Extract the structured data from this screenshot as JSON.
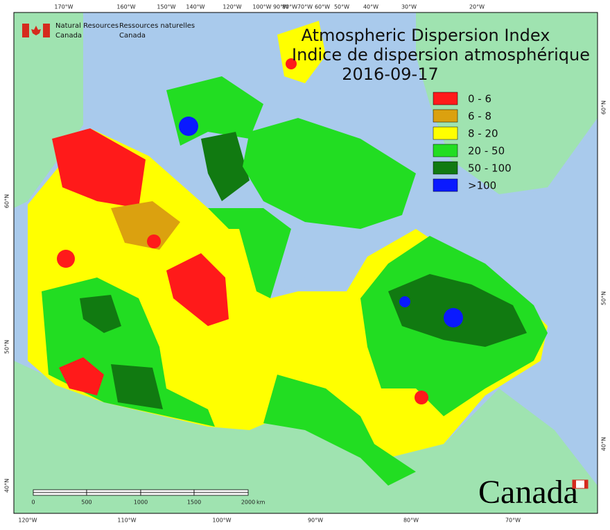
{
  "header": {
    "agency_en": [
      "Natural Resources",
      "Canada"
    ],
    "agency_fr": [
      "Ressources naturelles",
      "Canada"
    ]
  },
  "title": {
    "en": "Atmospheric Dispersion Index",
    "fr": "Indice de dispersion atmosphérique",
    "date": "2016-09-17"
  },
  "legend": [
    {
      "label": "0 - 6",
      "color": "#ff1a1a"
    },
    {
      "label": "6 - 8",
      "color": "#dba10f"
    },
    {
      "label": "8 - 20",
      "color": "#ffff00"
    },
    {
      "label": "20 - 50",
      "color": "#22dd22"
    },
    {
      "label": "50 - 100",
      "color": "#117a11"
    },
    {
      "label": ">100",
      "color": "#0a1aff"
    }
  ],
  "graticule": {
    "top": [
      "170°W",
      "160°W",
      "150°W",
      "140°W",
      "120°W",
      "100°W",
      "90°W",
      "80°W",
      "70°W",
      "60°W",
      "50°W",
      "40°W",
      "30°W",
      "20°W"
    ],
    "bottom": [
      "120°W",
      "110°W",
      "100°W",
      "90°W",
      "80°W",
      "70°W"
    ],
    "left": [
      "60°N",
      "50°N",
      "40°N"
    ],
    "right": [
      "60°N",
      "50°N",
      "40°N"
    ]
  },
  "scale_bar": {
    "labels": [
      "0",
      "500",
      "1000",
      "1500",
      "2000"
    ],
    "unit": "km"
  },
  "wordmark": "Canada"
}
